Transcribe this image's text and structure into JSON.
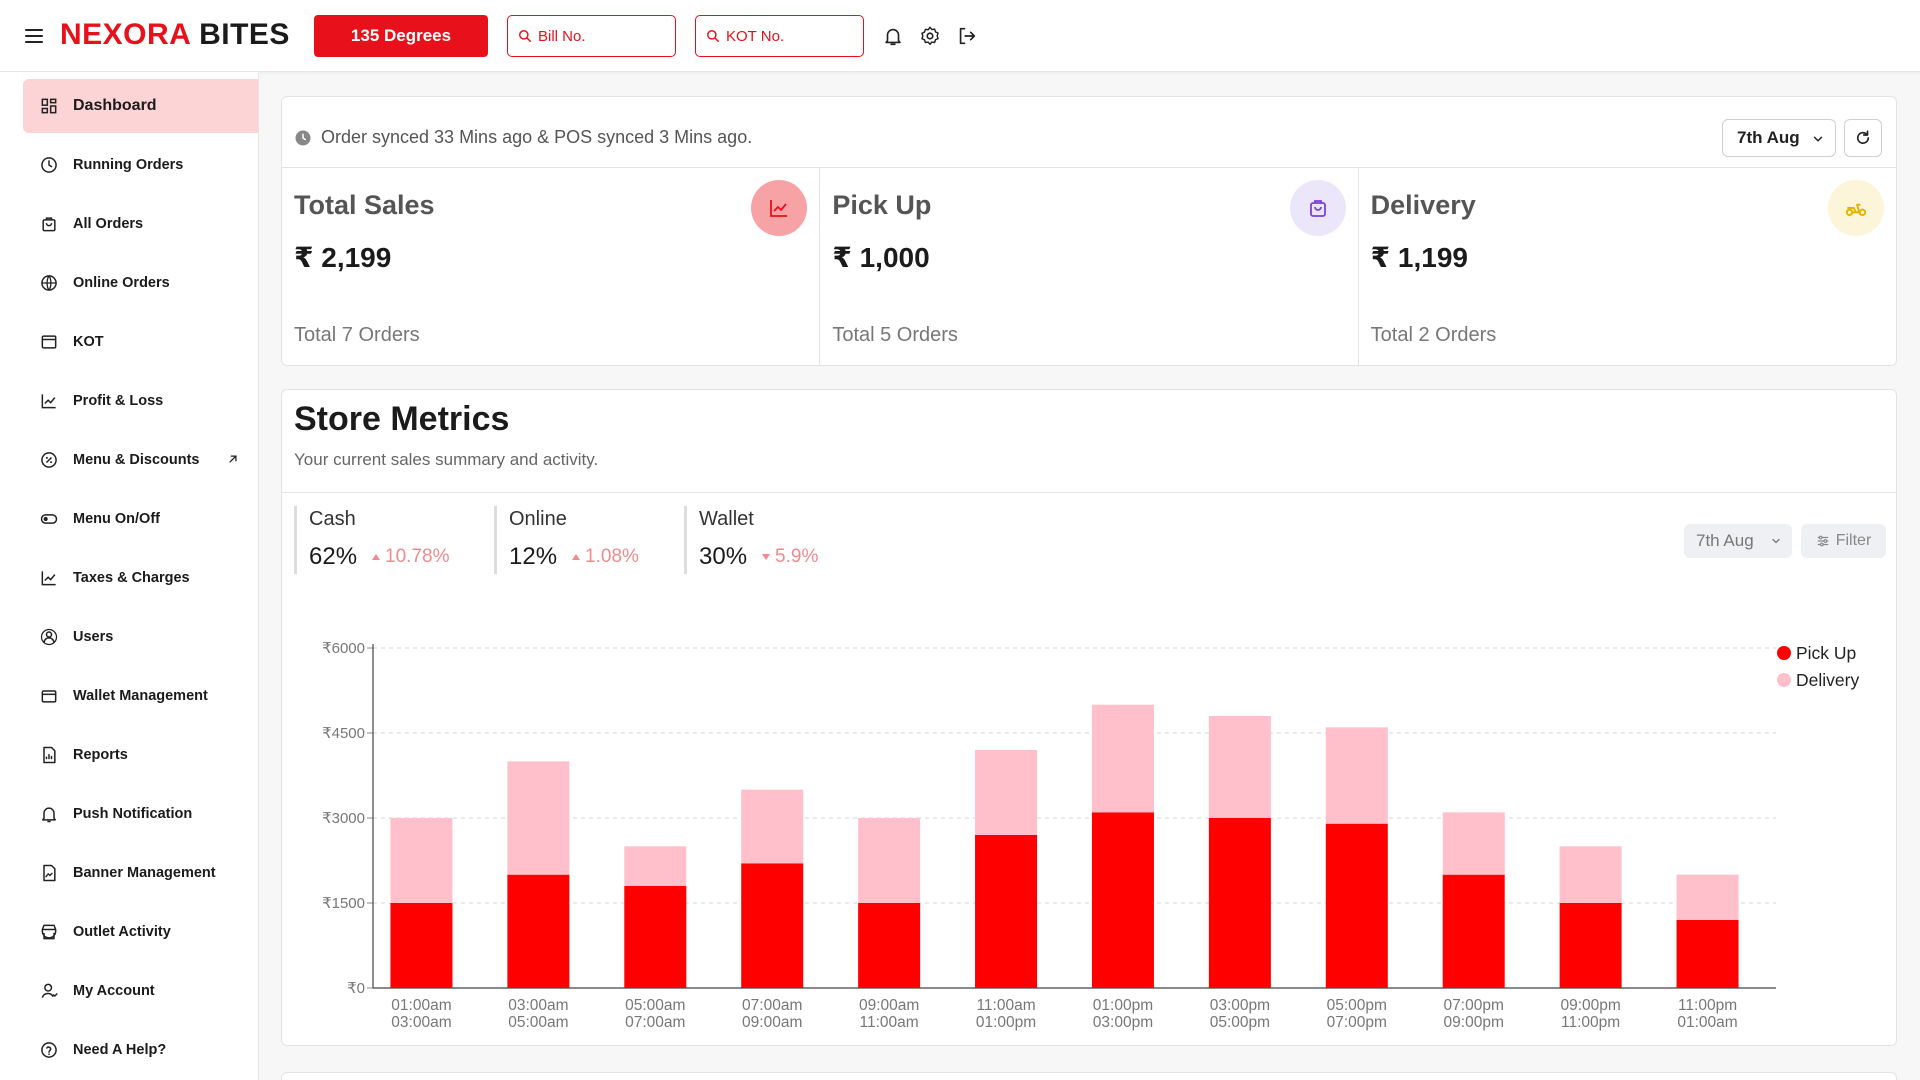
{
  "header": {
    "brand_part1": "NEXORA",
    "brand_part2": "BITES",
    "outlet_button": "135 Degrees",
    "bill_placeholder": "Bill No.",
    "kot_placeholder": "KOT No."
  },
  "sidebar": {
    "items": [
      {
        "label": "Dashboard",
        "icon": "dashboard-icon",
        "active": true
      },
      {
        "label": "Running Orders",
        "icon": "clock-icon"
      },
      {
        "label": "All Orders",
        "icon": "bag-icon"
      },
      {
        "label": "Online Orders",
        "icon": "globe-icon"
      },
      {
        "label": "KOT",
        "icon": "kot-icon"
      },
      {
        "label": "Profit & Loss",
        "icon": "chart-line-icon"
      },
      {
        "label": "Menu & Discounts",
        "icon": "discount-icon",
        "external": true
      },
      {
        "label": "Menu On/Off",
        "icon": "toggle-icon"
      },
      {
        "label": "Taxes & Charges",
        "icon": "chart-line-icon"
      },
      {
        "label": "Users",
        "icon": "users-icon"
      },
      {
        "label": "Wallet Management",
        "icon": "wallet-icon"
      },
      {
        "label": "Reports",
        "icon": "report-icon"
      },
      {
        "label": "Push Notification",
        "icon": "bell-icon"
      },
      {
        "label": "Banner Management",
        "icon": "banner-icon"
      },
      {
        "label": "Outlet Activity",
        "icon": "store-icon"
      },
      {
        "label": "My Account",
        "icon": "user-icon"
      },
      {
        "label": "Need A Help?",
        "icon": "help-icon"
      }
    ]
  },
  "summary": {
    "sync_text": "Order synced 33 Mins ago & POS synced 3 Mins ago.",
    "date": "7th Aug",
    "stats": [
      {
        "title": "Total Sales",
        "value": "₹ 2,199",
        "sub": "Total 7 Orders",
        "icon": "trend-icon",
        "color": "#f7a2a5"
      },
      {
        "title": "Pick Up",
        "value": "₹ 1,000",
        "sub": "Total 5 Orders",
        "icon": "shopping-bag-icon",
        "color": "#ece6fb"
      },
      {
        "title": "Delivery",
        "value": "₹ 1,199",
        "sub": "Total 2 Orders",
        "icon": "scooter-icon",
        "color": "#fdf5d9"
      }
    ]
  },
  "metrics": {
    "title": "Store Metrics",
    "subtitle": "Your current sales summary and activity.",
    "payments": [
      {
        "name": "Cash",
        "percent": "62%",
        "change": "10.78%",
        "direction": "up"
      },
      {
        "name": "Online",
        "percent": "12%",
        "change": "1.08%",
        "direction": "up"
      },
      {
        "name": "Wallet",
        "percent": "30%",
        "change": "5.9%",
        "direction": "down"
      }
    ],
    "date": "7th Aug",
    "filter_label": "Filter"
  },
  "chart_data": {
    "type": "bar",
    "stacked": true,
    "categories": [
      [
        "01:00am",
        "03:00am"
      ],
      [
        "03:00am",
        "05:00am"
      ],
      [
        "05:00am",
        "07:00am"
      ],
      [
        "07:00am",
        "09:00am"
      ],
      [
        "09:00am",
        "11:00am"
      ],
      [
        "11:00am",
        "01:00pm"
      ],
      [
        "01:00pm",
        "03:00pm"
      ],
      [
        "03:00pm",
        "05:00pm"
      ],
      [
        "05:00pm",
        "07:00pm"
      ],
      [
        "07:00pm",
        "09:00pm"
      ],
      [
        "09:00pm",
        "11:00pm"
      ],
      [
        "11:00pm",
        "01:00am"
      ]
    ],
    "series": [
      {
        "name": "Pick Up",
        "color": "#ff0000",
        "values": [
          1500,
          2000,
          1800,
          2200,
          1500,
          2700,
          3100,
          3000,
          2900,
          2000,
          1500,
          1200
        ]
      },
      {
        "name": "Delivery",
        "color": "#ffc0cb",
        "values": [
          1500,
          2000,
          700,
          1300,
          1500,
          1500,
          1900,
          1800,
          1700,
          1100,
          1000,
          800
        ]
      }
    ],
    "yticks": [
      "₹0",
      "₹1500",
      "₹3000",
      "₹4500",
      "₹6000"
    ],
    "ytick_values": [
      0,
      1500,
      3000,
      4500,
      6000
    ],
    "ylim": [
      0,
      6000
    ],
    "grid": true,
    "legend": "top-right"
  }
}
